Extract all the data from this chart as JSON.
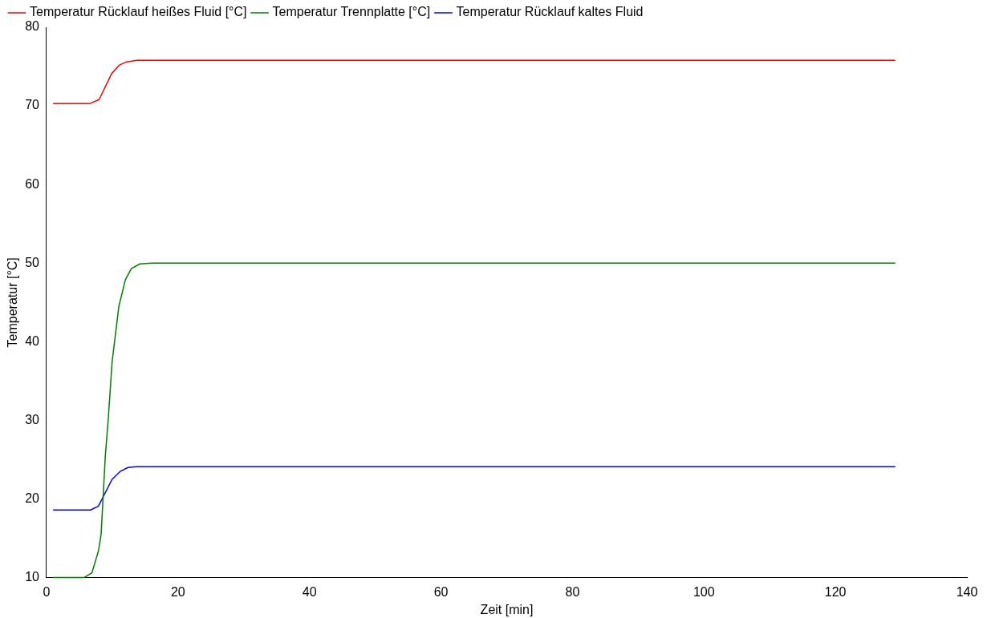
{
  "chart_data": {
    "type": "line",
    "xlabel": "Zeit [min]",
    "ylabel": "Temperatur [°C]",
    "xlim": [
      0,
      140
    ],
    "xticks": [
      0,
      20,
      40,
      60,
      80,
      100,
      120,
      140
    ],
    "ylim": [
      10,
      80
    ],
    "yticks": [
      10,
      20,
      30,
      40,
      50,
      60,
      70,
      80
    ],
    "grid": false,
    "legend": "top left",
    "marker": "none",
    "line_style": "solid",
    "series": [
      {
        "name": "Temperatur Rücklauf heißes Fluid [°C]",
        "color": "#ff0000",
        "x": [
          1,
          6.6,
          8,
          9.9,
          11.1,
          12.2,
          13.8,
          129.1
        ],
        "values": [
          70.3,
          70.3,
          70.8,
          74.1,
          75.2,
          75.6,
          75.8,
          75.8
        ]
      },
      {
        "name": "Temperatur Trennplatte [°C]",
        "color": "#008000",
        "x": [
          1,
          5.7,
          6.9,
          7.9,
          8.3,
          8.95,
          9.4,
          9.97,
          11,
          12,
          12.9,
          14.2,
          16,
          129.1
        ],
        "values": [
          10,
          10,
          10.6,
          13.4,
          15.5,
          25.6,
          30.3,
          37.4,
          44.5,
          47.9,
          49.3,
          49.9,
          50,
          50
        ]
      },
      {
        "name": "Temperatur Rücklauf kaltes Fluid",
        "color": "#0000ff",
        "x": [
          1,
          6.7,
          7.9,
          9.97,
          11.2,
          12.4,
          13.6,
          129.1
        ],
        "values": [
          18.6,
          18.6,
          19.1,
          22.5,
          23.5,
          24,
          24.1,
          24.1
        ]
      }
    ]
  }
}
